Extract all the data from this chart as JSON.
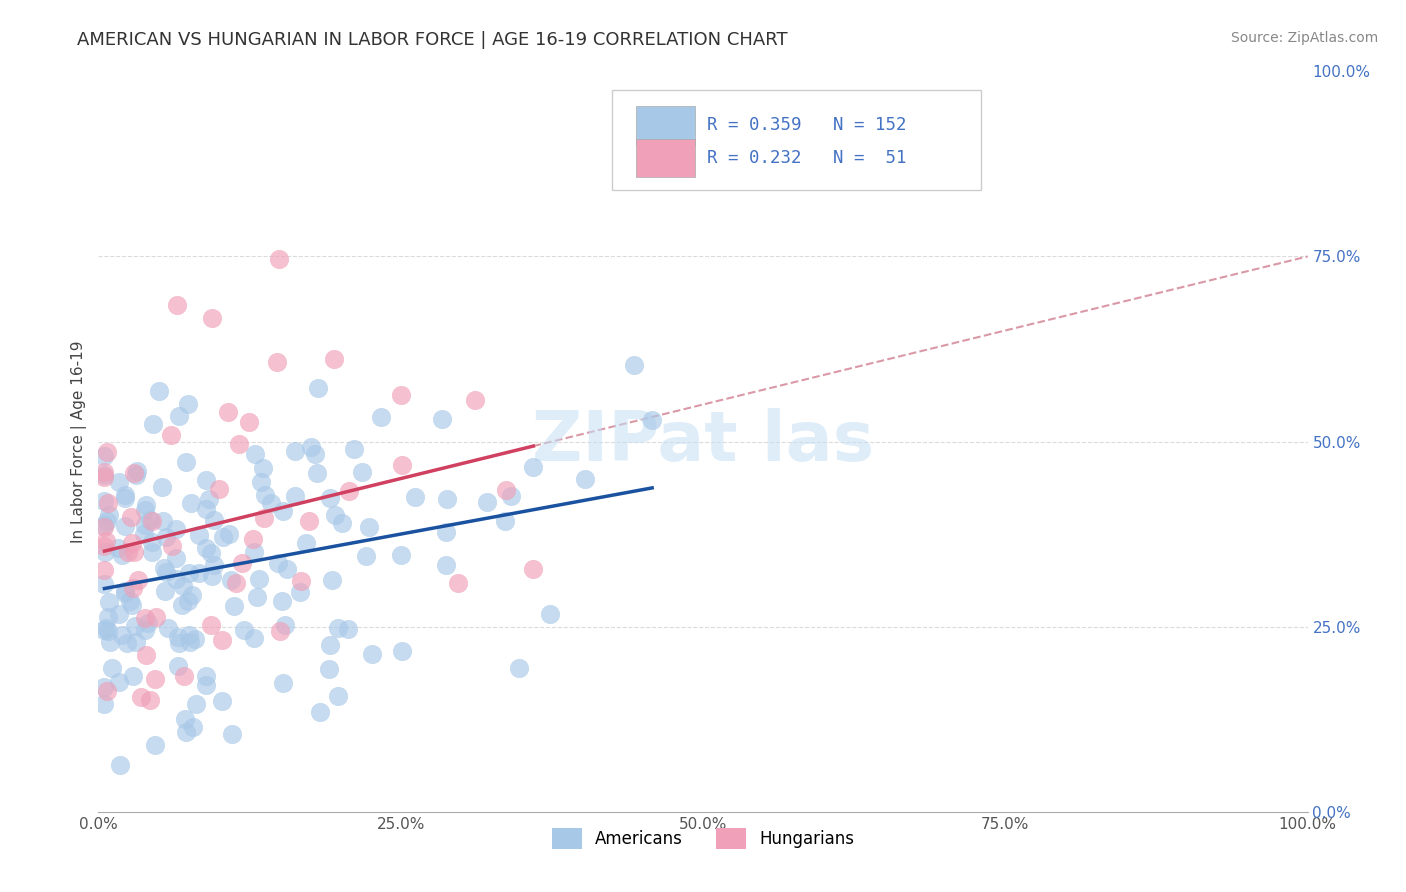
{
  "title": "AMERICAN VS HUNGARIAN IN LABOR FORCE | AGE 16-19 CORRELATION CHART",
  "source": "Source: ZipAtlas.com",
  "ylabel": "In Labor Force | Age 16-19",
  "watermark": "ZIPat las",
  "american_R": 0.359,
  "american_N": 152,
  "hungarian_R": 0.232,
  "hungarian_N": 51,
  "american_color": "#a8c8e8",
  "hungarian_color": "#f0a0b8",
  "american_line_color": "#1a52a0",
  "hungarian_line_color": "#d04060",
  "dashed_line_color": "#d08090",
  "background_color": "#ffffff",
  "grid_color": "#cccccc",
  "tick_color": "#4472c4",
  "title_color": "#333333",
  "source_color": "#888888",
  "xlim": [
    0.0,
    1.0
  ],
  "ylim": [
    0.0,
    1.0
  ],
  "xticks": [
    0.0,
    0.25,
    0.5,
    0.75,
    1.0
  ],
  "yticks": [
    0.0,
    0.25,
    0.5,
    0.75,
    1.0
  ],
  "xtick_labels": [
    "0.0%",
    "25.0%",
    "50.0%",
    "75.0%",
    "100.0%"
  ],
  "ytick_labels": [
    "0.0%",
    "25.0%",
    "50.0%",
    "75.0%",
    "100.0%"
  ]
}
